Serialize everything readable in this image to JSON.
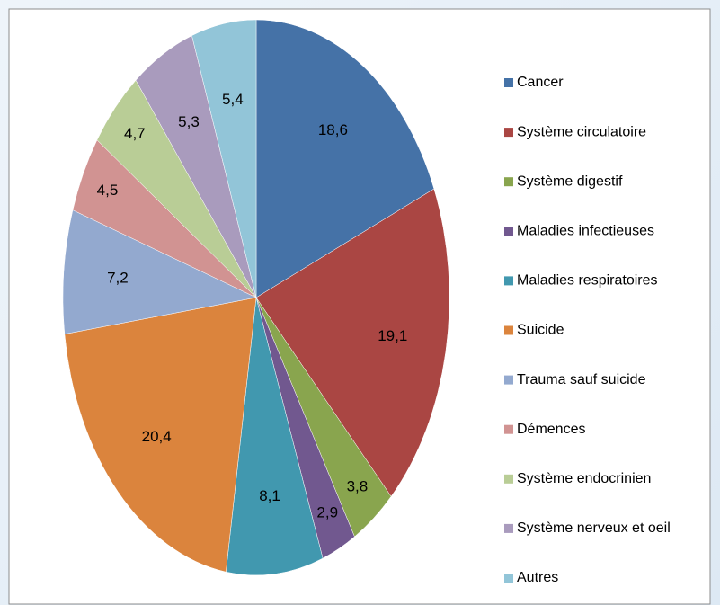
{
  "chart_data": {
    "type": "pie",
    "categories": [
      "Cancer",
      "Système circulatoire",
      "Système digestif",
      "Maladies infectieuses",
      "Maladies respiratoires",
      "Suicide",
      "Trauma sauf suicide",
      "Démences",
      "Système endocrinien",
      "Système nerveux  et oeil",
      "Autres"
    ],
    "values": [
      18.6,
      19.1,
      3.8,
      2.9,
      8.1,
      20.4,
      7.2,
      4.5,
      4.7,
      5.3,
      5.4
    ],
    "value_labels": [
      "18,6",
      "19,1",
      "3,8",
      "2,9",
      "8,1",
      "20,4",
      "7,2",
      "4,5",
      "4,7",
      "5,3",
      "5,4"
    ],
    "colors": [
      "#4572a7",
      "#aa4643",
      "#89a54e",
      "#71588f",
      "#4198af",
      "#db843d",
      "#93a9cf",
      "#d19392",
      "#b9cd96",
      "#a99bbd",
      "#92c5d8"
    ],
    "legend": "right"
  }
}
